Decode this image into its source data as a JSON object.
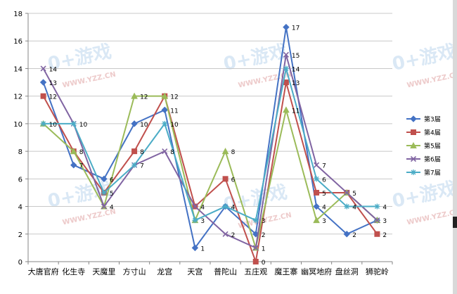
{
  "chart_data": {
    "type": "line",
    "categories": [
      "大唐官府",
      "化生寺",
      "天魔里",
      "方寸山",
      "龙宫",
      "天宫",
      "普陀山",
      "五庄观",
      "魔王寨",
      "幽冥地府",
      "盘丝洞",
      "狮驼岭"
    ],
    "ylim": [
      0,
      18
    ],
    "yticks": [
      0,
      2,
      4,
      6,
      8,
      10,
      12,
      14,
      16,
      18
    ],
    "grid": true,
    "legend_position": "right",
    "series": [
      {
        "name": "第3届",
        "color": "#4472c4",
        "marker": "diamond",
        "values": [
          13,
          7,
          6,
          10,
          11,
          1,
          4,
          2,
          17,
          4,
          2,
          3
        ]
      },
      {
        "name": "第4届",
        "color": "#c0504d",
        "marker": "square",
        "values": [
          12,
          8,
          5,
          8,
          12,
          4,
          6,
          0,
          13,
          5,
          5,
          2
        ]
      },
      {
        "name": "第5届",
        "color": "#9bbb59",
        "marker": "triangle",
        "values": [
          10,
          8,
          4,
          12,
          12,
          3,
          8,
          1,
          11,
          3,
          5,
          3
        ]
      },
      {
        "name": "第6届",
        "color": "#8064a2",
        "marker": "x",
        "values": [
          14,
          10,
          4,
          7,
          8,
          4,
          2,
          1,
          15,
          7,
          5,
          3
        ]
      },
      {
        "name": "第7届",
        "color": "#4bacc6",
        "marker": "star",
        "values": [
          10,
          10,
          5,
          7,
          10,
          3,
          4,
          3,
          14,
          6,
          4,
          4
        ]
      }
    ],
    "data_labels_from_series": [
      2,
      2,
      0,
      2,
      0,
      0,
      1,
      1,
      0,
      1,
      1,
      4
    ],
    "data_label_values": [
      13,
      12,
      10,
      10,
      8,
      7,
      10,
      6,
      5,
      4,
      12,
      8,
      7,
      10,
      12,
      11,
      10,
      4,
      3,
      1,
      8,
      6,
      4,
      2,
      3,
      2,
      1,
      0,
      17,
      15,
      14,
      13,
      11,
      6,
      5,
      4,
      3,
      5,
      4,
      2,
      4,
      3,
      2
    ]
  },
  "watermark": {
    "logo_text": "0+游戏",
    "url_text": "WWW.YZZ.CN"
  }
}
